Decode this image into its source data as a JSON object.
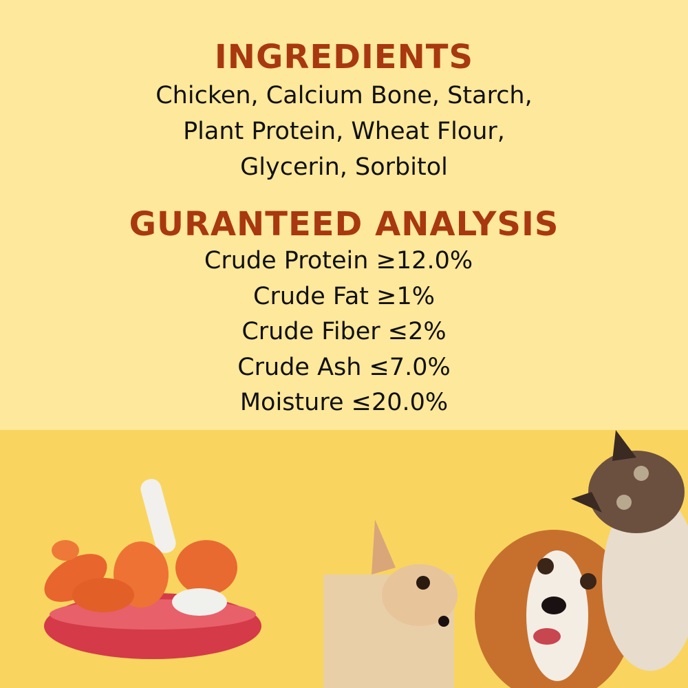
{
  "ingredients": {
    "heading": "INGREDIENTS",
    "lines": [
      "Chicken, Calcium Bone, Starch,",
      "Plant Protein, Wheat Flour,",
      "Glycerin, Sorbitol"
    ]
  },
  "analysis": {
    "heading": "GURANTEED ANALYSIS",
    "lines": [
      "Crude Protein ≥12.0%",
      "Crude Fat ≥1%",
      "Crude Fiber ≤2%",
      "Crude Ash ≤7.0%",
      "Moisture ≤20.0%"
    ]
  },
  "colors": {
    "top_background": "#FEE89B",
    "bottom_background": "#F9D55F",
    "heading": "#A8380F",
    "text": "#111111"
  },
  "images": [
    "treats-bowl",
    "chihuahua-dog",
    "spaniel-dog",
    "siamese-cat"
  ]
}
